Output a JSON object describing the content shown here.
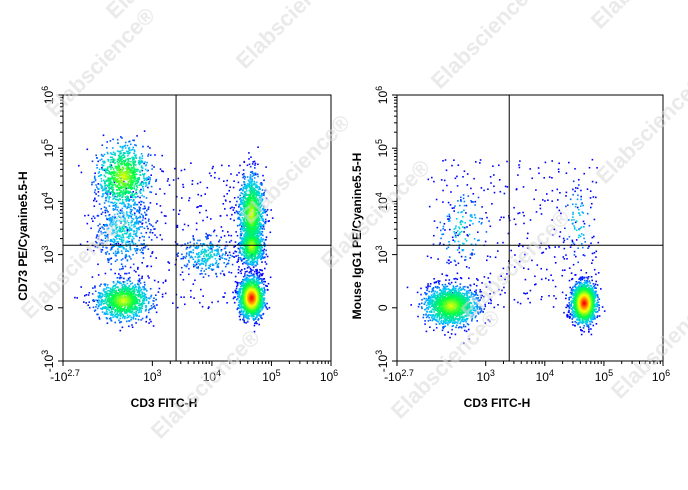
{
  "watermark": "Elabscience®",
  "colors": {
    "density_low": "#0000ff",
    "density_mid1": "#00c8ff",
    "density_mid2": "#00ff40",
    "density_mid3": "#ffff00",
    "density_high": "#ff0000",
    "axis": "#000000",
    "gate": "#000000"
  },
  "chart_data": [
    {
      "type": "scatter",
      "title": "",
      "xlabel": "CD3 FITC-H",
      "ylabel": "CD73 PE/Cyanine5.5-H",
      "x_scale": "biexponential",
      "y_scale": "biexponential",
      "xlim": [
        -501,
        1000000
      ],
      "ylim": [
        -1000,
        1000000
      ],
      "x_ticks": [
        "-10^2.7",
        "10^3",
        "10^4",
        "10^5",
        "10^6"
      ],
      "y_ticks": [
        "-10^3",
        "0",
        "10^3",
        "10^4",
        "10^5",
        "10^6"
      ],
      "gate": {
        "x": 2500,
        "y": 1500
      },
      "color_scale": "density (blue → cyan → green → yellow → red)",
      "populations": [
        {
          "x": 500,
          "y": 30000,
          "cells": 900,
          "peak_density": "medium"
        },
        {
          "x": 500,
          "y": 150,
          "cells": 1100,
          "peak_density": "medium"
        },
        {
          "x": 500,
          "y": 3000,
          "cells": 500,
          "peak_density": "low"
        },
        {
          "x": 45000,
          "y": 6000,
          "cells": 1200,
          "peak_density": "medium"
        },
        {
          "x": 45000,
          "y": 200,
          "cells": 1700,
          "peak_density": "high"
        },
        {
          "x": 45000,
          "y": 1500,
          "cells": 700,
          "peak_density": "medium"
        },
        {
          "x": 8000,
          "y": 1000,
          "cells": 250,
          "peak_density": "low"
        }
      ]
    },
    {
      "type": "scatter",
      "title": "",
      "xlabel": "CD3 FITC-H",
      "ylabel": "Mouse IgG1 PE/Cyanine5.5-H",
      "x_scale": "biexponential",
      "y_scale": "biexponential",
      "xlim": [
        -501,
        1000000
      ],
      "ylim": [
        -1000,
        1000000
      ],
      "x_ticks": [
        "-10^2.7",
        "10^3",
        "10^4",
        "10^5",
        "10^6"
      ],
      "y_ticks": [
        "-10^3",
        "0",
        "10^3",
        "10^4",
        "10^5",
        "10^6"
      ],
      "gate": {
        "x": 2500,
        "y": 1500
      },
      "color_scale": "density (blue → cyan → green → yellow → red)",
      "populations": [
        {
          "x": 400,
          "y": 50,
          "cells": 1500,
          "peak_density": "medium"
        },
        {
          "x": 45000,
          "y": 100,
          "cells": 1800,
          "peak_density": "high"
        },
        {
          "x": 600,
          "y": 3000,
          "cells": 120,
          "peak_density": "low"
        },
        {
          "x": 35000,
          "y": 4000,
          "cells": 60,
          "peak_density": "low"
        }
      ]
    }
  ]
}
